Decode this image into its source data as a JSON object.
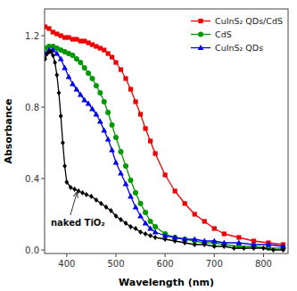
{
  "chart_data": {
    "type": "line",
    "title": "",
    "xlabel": "Wavelength (nm)",
    "ylabel": "Absorbance",
    "xlim": [
      355,
      850
    ],
    "ylim": [
      -0.02,
      1.35
    ],
    "xticks": [
      400,
      500,
      600,
      700,
      800
    ],
    "yticks": [
      {
        "value": 0.0,
        "label": "0.0"
      },
      0.4,
      0.8,
      1.2
    ],
    "legend": "upper right",
    "series": [
      {
        "name": "CuInS₂ QDs/CdS",
        "color": "#EE0000",
        "marker": "square",
        "x": [
          356,
          364,
          372,
          380,
          388,
          396,
          404,
          412,
          420,
          428,
          436,
          444,
          452,
          460,
          468,
          476,
          484,
          492,
          500,
          510,
          520,
          530,
          540,
          550,
          560,
          570,
          580,
          600,
          620,
          640,
          660,
          680,
          700,
          720,
          750,
          780,
          810,
          840
        ],
        "values": [
          1.25,
          1.24,
          1.22,
          1.21,
          1.2,
          1.19,
          1.19,
          1.18,
          1.18,
          1.17,
          1.17,
          1.16,
          1.15,
          1.14,
          1.13,
          1.12,
          1.1,
          1.08,
          1.05,
          1.01,
          0.96,
          0.9,
          0.83,
          0.76,
          0.68,
          0.61,
          0.54,
          0.42,
          0.33,
          0.26,
          0.2,
          0.16,
          0.12,
          0.09,
          0.07,
          0.05,
          0.04,
          0.03
        ]
      },
      {
        "name": "CdS",
        "color": "#009900",
        "marker": "circle",
        "x": [
          356,
          364,
          372,
          380,
          388,
          396,
          404,
          412,
          420,
          428,
          436,
          444,
          452,
          460,
          468,
          476,
          484,
          492,
          500,
          510,
          520,
          530,
          540,
          550,
          560,
          570,
          580,
          600,
          620,
          640,
          660,
          680,
          700,
          720,
          750,
          780,
          810,
          840
        ],
        "values": [
          1.13,
          1.14,
          1.14,
          1.13,
          1.12,
          1.11,
          1.1,
          1.09,
          1.07,
          1.05,
          1.02,
          0.99,
          0.96,
          0.92,
          0.88,
          0.83,
          0.77,
          0.7,
          0.63,
          0.55,
          0.47,
          0.39,
          0.32,
          0.26,
          0.21,
          0.16,
          0.13,
          0.09,
          0.07,
          0.06,
          0.05,
          0.04,
          0.04,
          0.03,
          0.02,
          0.02,
          0.01,
          0.01
        ]
      },
      {
        "name": "CuInS₂ QDs",
        "color": "#0000EE",
        "marker": "triangle",
        "x": [
          356,
          364,
          372,
          380,
          388,
          396,
          404,
          412,
          420,
          428,
          436,
          444,
          452,
          460,
          468,
          476,
          484,
          492,
          500,
          510,
          520,
          530,
          540,
          550,
          560,
          570,
          580,
          600,
          620,
          640,
          660,
          680,
          700,
          720,
          750,
          780,
          810,
          840
        ],
        "values": [
          1.1,
          1.12,
          1.12,
          1.1,
          1.07,
          1.02,
          0.97,
          0.93,
          0.9,
          0.87,
          0.84,
          0.82,
          0.79,
          0.76,
          0.72,
          0.67,
          0.62,
          0.56,
          0.49,
          0.43,
          0.37,
          0.3,
          0.24,
          0.19,
          0.15,
          0.12,
          0.1,
          0.08,
          0.07,
          0.06,
          0.06,
          0.05,
          0.05,
          0.04,
          0.04,
          0.03,
          0.03,
          0.02
        ]
      },
      {
        "color": "#000000",
        "marker": "diamond",
        "x": [
          356,
          360,
          364,
          368,
          372,
          376,
          380,
          384,
          388,
          392,
          396,
          400,
          408,
          416,
          424,
          432,
          440,
          450,
          460,
          470,
          480,
          490,
          500,
          510,
          520,
          530,
          540,
          550,
          560,
          570,
          580,
          600,
          620,
          640,
          660,
          680,
          700,
          720,
          740,
          760,
          780,
          800,
          820,
          840
        ],
        "values": [
          1.07,
          1.1,
          1.11,
          1.11,
          1.09,
          1.05,
          0.98,
          0.88,
          0.75,
          0.6,
          0.47,
          0.38,
          0.35,
          0.34,
          0.33,
          0.32,
          0.31,
          0.3,
          0.28,
          0.26,
          0.24,
          0.22,
          0.19,
          0.17,
          0.15,
          0.13,
          0.12,
          0.1,
          0.09,
          0.08,
          0.07,
          0.06,
          0.05,
          0.04,
          0.03,
          0.03,
          0.02,
          0.02,
          0.01,
          0.01,
          0.01,
          0.01,
          0.0,
          0.0
        ]
      }
    ],
    "annotations": [
      {
        "text": "naked TiO₂",
        "x": 422,
        "y": 0.335
      }
    ]
  }
}
